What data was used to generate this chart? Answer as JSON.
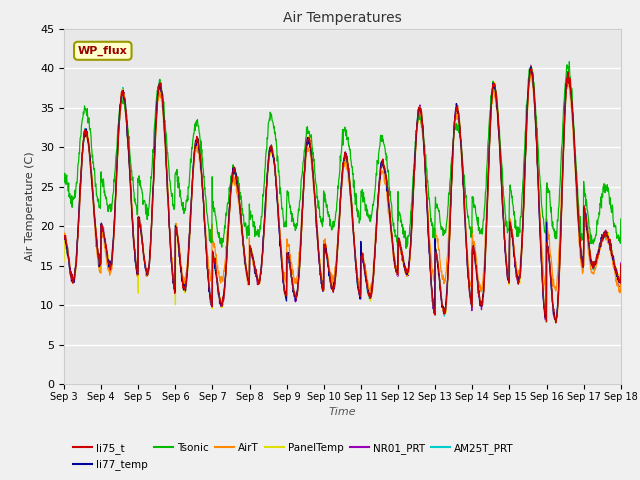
{
  "title": "Air Temperatures",
  "xlabel": "Time",
  "ylabel": "Air Temperature (C)",
  "ylim": [
    0,
    45
  ],
  "series_colors": {
    "li75_t": "#cc0000",
    "li77_temp": "#000099",
    "Tsonic": "#00bb00",
    "AirT": "#ff8800",
    "PanelTemp": "#dddd00",
    "NR01_PRT": "#9900bb",
    "AM25T_PRT": "#00cccc"
  },
  "legend_label": "WP_flux",
  "background_color": "#f0f0f0",
  "plot_bg_color": "#e8e8e8",
  "grid_color": "#ffffff",
  "x_tick_labels": [
    "Sep 3",
    "Sep 4",
    "Sep 5",
    "Sep 6",
    "Sep 7",
    "Sep 8",
    "Sep 9",
    "Sep 10",
    "Sep 11",
    "Sep 12",
    "Sep 13",
    "Sep 14",
    "Sep 15",
    "Sep 16",
    "Sep 17",
    "Sep 18"
  ],
  "daily_maxes_main": [
    32,
    37,
    38,
    31,
    27,
    30,
    31,
    29,
    28,
    35,
    35,
    38,
    40,
    39,
    19,
    17
  ],
  "daily_mins_main": [
    13,
    15,
    14,
    12,
    10,
    13,
    11,
    12,
    11,
    14,
    9,
    10,
    13,
    8,
    15,
    13
  ],
  "daily_maxes_tsonic": [
    35,
    36,
    38,
    33,
    27,
    34,
    32,
    32,
    31,
    34,
    33,
    38,
    40,
    40,
    25,
    22
  ],
  "daily_mins_tsonic": [
    23,
    22,
    22,
    22,
    18,
    19,
    20,
    20,
    21,
    18,
    19,
    19,
    19,
    19,
    18,
    18
  ],
  "daily_maxes_orange": [
    32,
    37,
    37,
    30,
    26,
    30,
    30,
    28,
    27,
    34,
    34,
    37,
    39,
    38,
    19,
    17
  ],
  "daily_mins_orange": [
    13,
    14,
    14,
    13,
    13,
    13,
    13,
    13,
    12,
    14,
    13,
    12,
    14,
    12,
    14,
    12
  ]
}
